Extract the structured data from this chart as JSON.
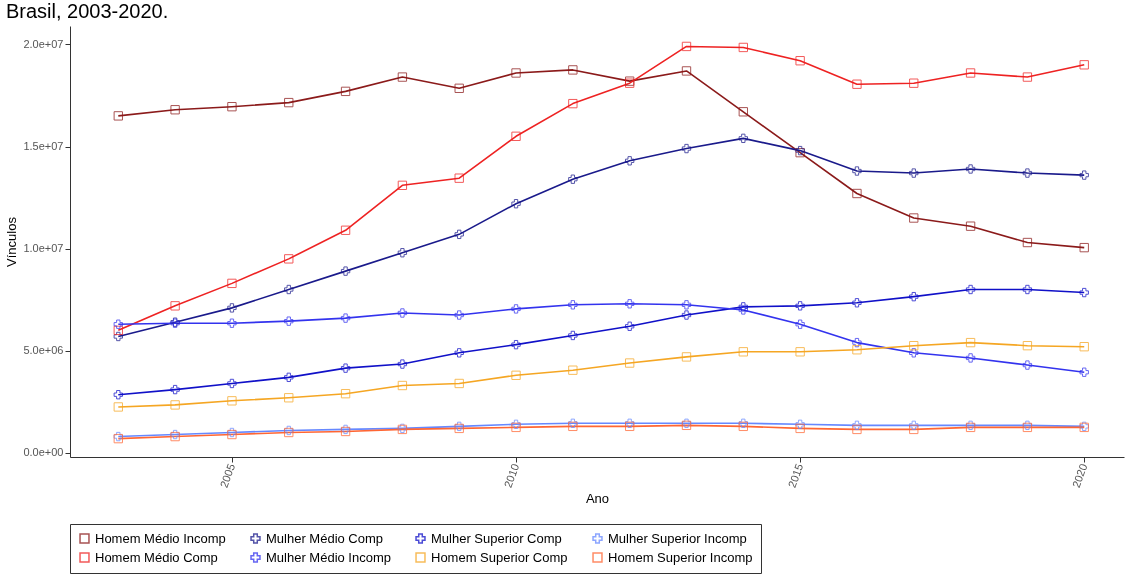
{
  "chart_data": {
    "type": "line",
    "title": "Brasil, 2003-2020.",
    "xlabel": "Ano",
    "ylabel": "Vínculos",
    "x": [
      2003,
      2004,
      2005,
      2006,
      2007,
      2008,
      2009,
      2010,
      2011,
      2012,
      2013,
      2014,
      2015,
      2016,
      2017,
      2018,
      2019,
      2020
    ],
    "xlim": [
      2002.15,
      2020.7
    ],
    "xticks": [
      2005,
      2010,
      2015,
      2020
    ],
    "ylim": [
      -200000,
      20900000
    ],
    "yticks": [
      {
        "value": 0,
        "label": "0.0e+00"
      },
      {
        "value": 5000000,
        "label": "5.0e+06"
      },
      {
        "value": 10000000,
        "label": "1.0e+07"
      },
      {
        "value": 15000000,
        "label": "1.5e+07"
      },
      {
        "value": 20000000,
        "label": "2.0e+07"
      }
    ],
    "grid": false,
    "legend": "bottom",
    "line_style": "solid",
    "series": [
      {
        "name": "Homem Médio Incomp",
        "color": "#8b1a1a",
        "marker": "square",
        "values": [
          16500000,
          16800000,
          16950000,
          17150000,
          17700000,
          18400000,
          17850000,
          18600000,
          18750000,
          18200000,
          18700000,
          16700000,
          14700000,
          12700000,
          11500000,
          11100000,
          10300000,
          10050000
        ]
      },
      {
        "name": "Mulher Médio Comp",
        "color": "#1a1a8b",
        "marker": "cross",
        "values": [
          5700000,
          6400000,
          7100000,
          8000000,
          8900000,
          9800000,
          10700000,
          12200000,
          13400000,
          14300000,
          14900000,
          15400000,
          14800000,
          13800000,
          13700000,
          13900000,
          13700000,
          13600000
        ]
      },
      {
        "name": "Mulher Superior Comp",
        "color": "#1010c8",
        "marker": "cross",
        "values": [
          2850000,
          3100000,
          3400000,
          3700000,
          4150000,
          4350000,
          4900000,
          5300000,
          5750000,
          6200000,
          6750000,
          7150000,
          7200000,
          7350000,
          7650000,
          8000000,
          8000000,
          7850000
        ]
      },
      {
        "name": "Mulher Superior Incomp",
        "color": "#6688ff",
        "marker": "cross",
        "values": [
          800000,
          900000,
          1000000,
          1100000,
          1150000,
          1200000,
          1300000,
          1400000,
          1450000,
          1450000,
          1450000,
          1450000,
          1400000,
          1350000,
          1350000,
          1350000,
          1350000,
          1300000
        ]
      },
      {
        "name": "Homem Médio Comp",
        "color": "#ee2222",
        "marker": "square",
        "values": [
          6000000,
          7200000,
          8300000,
          9500000,
          10900000,
          13100000,
          13450000,
          15500000,
          17100000,
          18100000,
          19900000,
          19850000,
          19200000,
          18050000,
          18100000,
          18600000,
          18400000,
          19000000
        ]
      },
      {
        "name": "Mulher Médio Incomp",
        "color": "#3333ee",
        "marker": "cross",
        "values": [
          6300000,
          6350000,
          6350000,
          6450000,
          6600000,
          6850000,
          6750000,
          7050000,
          7250000,
          7300000,
          7250000,
          7000000,
          6300000,
          5400000,
          4900000,
          4650000,
          4300000,
          3950000
        ]
      },
      {
        "name": "Homem Superior Comp",
        "color": "#f5a623",
        "marker": "square",
        "values": [
          2250000,
          2350000,
          2550000,
          2700000,
          2900000,
          3300000,
          3400000,
          3800000,
          4050000,
          4400000,
          4700000,
          4950000,
          4950000,
          5050000,
          5250000,
          5400000,
          5250000,
          5200000
        ]
      },
      {
        "name": "Homem Superior Incomp",
        "color": "#ff6633",
        "marker": "square",
        "values": [
          700000,
          800000,
          900000,
          1000000,
          1050000,
          1150000,
          1200000,
          1250000,
          1300000,
          1300000,
          1350000,
          1300000,
          1200000,
          1150000,
          1150000,
          1250000,
          1250000,
          1250000
        ]
      }
    ]
  }
}
